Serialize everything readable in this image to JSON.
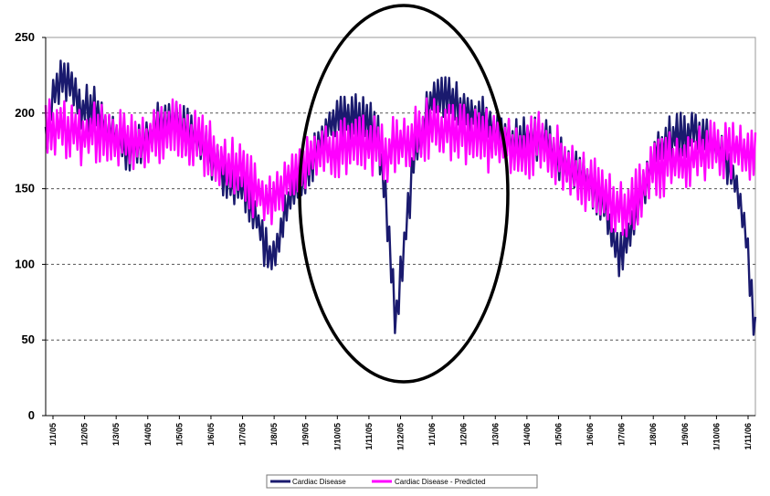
{
  "chart_data": {
    "type": "line",
    "title": "",
    "xlabel": "",
    "ylabel": "",
    "ylim": [
      0,
      250
    ],
    "yticks": [
      0,
      50,
      100,
      150,
      200,
      250
    ],
    "grid": "horizontal dashed",
    "x_tick_labels": [
      "1/1/05",
      "1/2/05",
      "1/3/05",
      "1/4/05",
      "1/5/05",
      "1/6/05",
      "1/7/05",
      "1/8/05",
      "1/9/05",
      "1/10/05",
      "1/11/05",
      "1/12/05",
      "1/1/06",
      "1/2/06",
      "1/3/06",
      "1/4/06",
      "1/5/06",
      "1/6/06",
      "1/7/06",
      "1/8/06",
      "1/9/06",
      "1/10/06",
      "1/11/06"
    ],
    "legend_position": "bottom",
    "series": [
      {
        "name": "Cardiac Disease",
        "color": "#1a1a6e",
        "values": [
          180,
          218,
          225,
          215,
          200,
          205,
          196,
          188,
          184,
          178,
          176,
          182,
          188,
          194,
          196,
          192,
          186,
          180,
          176,
          168,
          160,
          154,
          150,
          140,
          120,
          100,
          118,
          140,
          150,
          162,
          174,
          188,
          196,
          200,
          198,
          196,
          194,
          186,
          130,
          60,
          120,
          170,
          188,
          212,
          215,
          208,
          204,
          200,
          198,
          194,
          188,
          184,
          180,
          182,
          186,
          184,
          178,
          170,
          164,
          160,
          158,
          152,
          142,
          120,
          106,
          118,
          140,
          158,
          174,
          180,
          184,
          186,
          188,
          184,
          182,
          176,
          168,
          150,
          120,
          50
        ]
      },
      {
        "name": "Cardiac Disease - Predicted",
        "color": "#ff00ff",
        "values": [
          188,
          192,
          190,
          188,
          186,
          188,
          186,
          184,
          182,
          180,
          178,
          180,
          184,
          188,
          190,
          188,
          184,
          180,
          178,
          172,
          166,
          162,
          158,
          152,
          146,
          140,
          148,
          156,
          164,
          168,
          172,
          174,
          176,
          176,
          176,
          178,
          178,
          176,
          174,
          178,
          182,
          186,
          188,
          190,
          190,
          188,
          186,
          184,
          182,
          182,
          180,
          180,
          178,
          176,
          178,
          180,
          178,
          172,
          166,
          160,
          156,
          152,
          148,
          142,
          134,
          138,
          148,
          158,
          164,
          166,
          168,
          170,
          172,
          174,
          176,
          176,
          178,
          176,
          174,
          172
        ]
      }
    ]
  },
  "annotation": {
    "shape": "ellipse",
    "color": "#000000"
  }
}
